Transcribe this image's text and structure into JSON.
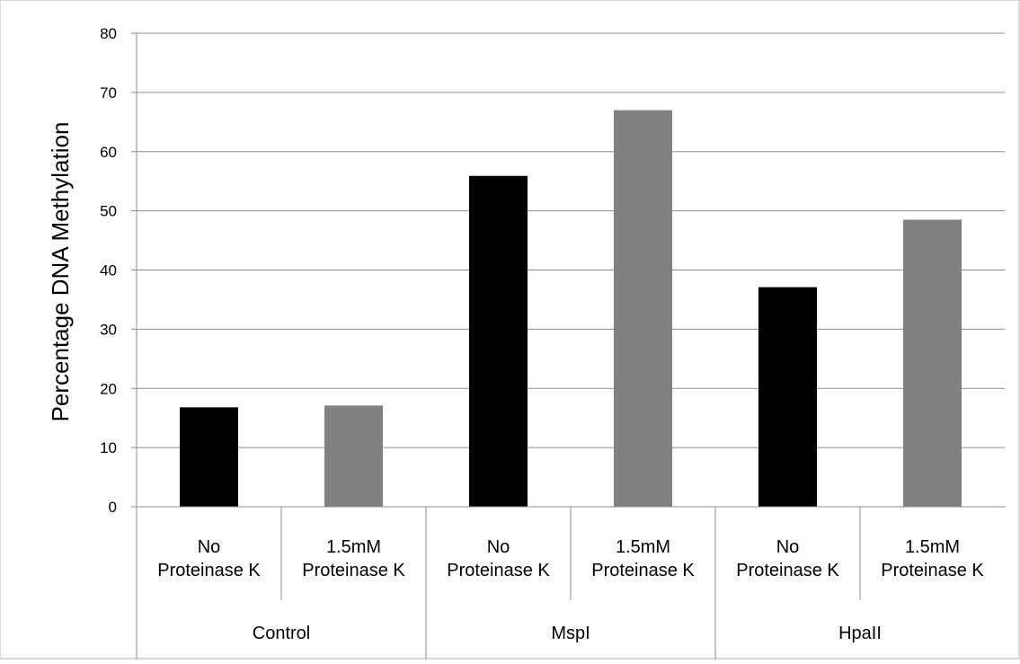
{
  "chart_data": {
    "type": "bar",
    "title": "",
    "xlabel": "",
    "ylabel": "Percentage DNA Methylation",
    "ylim": [
      0,
      80
    ],
    "yticks": [
      0,
      10,
      20,
      30,
      40,
      50,
      60,
      70,
      80
    ],
    "grid": "horizontal",
    "groups": [
      {
        "label": "Control",
        "bars": [
          {
            "label_lines": [
              "No",
              "Proteinase K"
            ],
            "value": 16.8,
            "color": "#000000"
          },
          {
            "label_lines": [
              "1.5mM",
              "Proteinase K"
            ],
            "value": 17.1,
            "color": "#808080"
          }
        ]
      },
      {
        "label": "MspI",
        "bars": [
          {
            "label_lines": [
              "No",
              "Proteinase K"
            ],
            "value": 55.9,
            "color": "#000000"
          },
          {
            "label_lines": [
              "1.5mM",
              "Proteinase K"
            ],
            "value": 67.0,
            "color": "#808080"
          }
        ]
      },
      {
        "label": "HpaII",
        "bars": [
          {
            "label_lines": [
              "No",
              "Proteinase K"
            ],
            "value": 37.1,
            "color": "#000000"
          },
          {
            "label_lines": [
              "1.5mM",
              "Proteinase K"
            ],
            "value": 48.5,
            "color": "#808080"
          }
        ]
      }
    ]
  }
}
